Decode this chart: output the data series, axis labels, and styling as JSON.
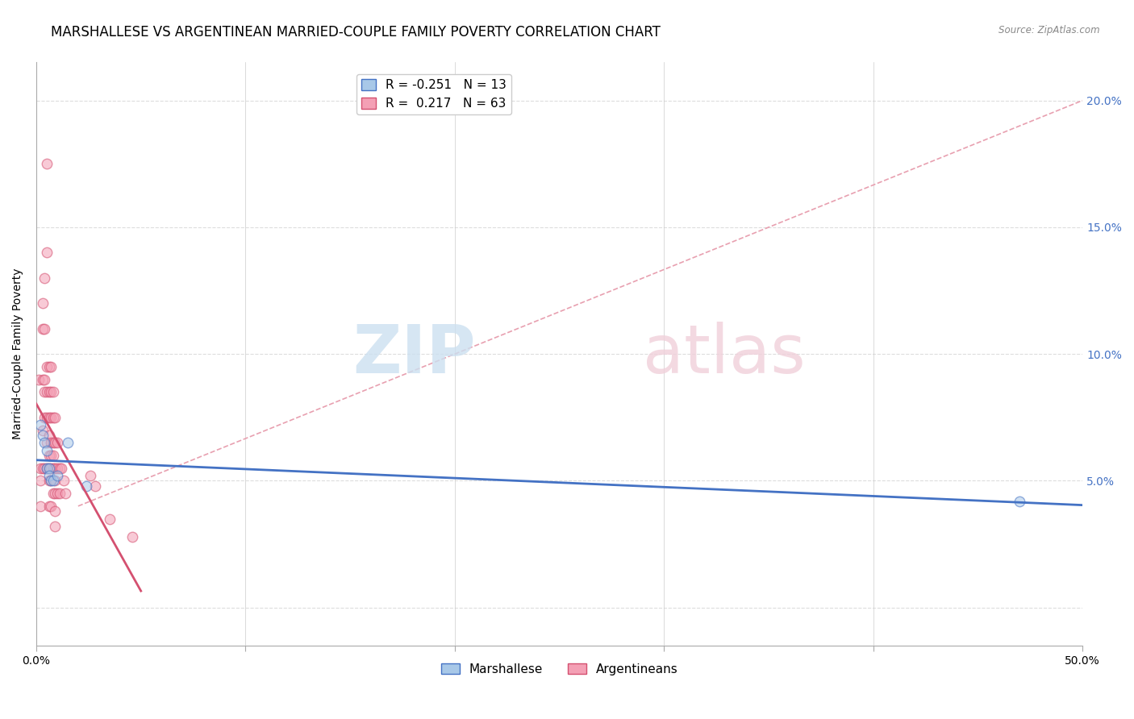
{
  "title": "MARSHALLESE VS ARGENTINEAN MARRIED-COUPLE FAMILY POVERTY CORRELATION CHART",
  "source": "Source: ZipAtlas.com",
  "xlabel": "",
  "ylabel": "Married-Couple Family Poverty",
  "xlim": [
    0,
    0.5
  ],
  "ylim": [
    -0.015,
    0.215
  ],
  "xtick_vals": [
    0.0,
    0.1,
    0.2,
    0.3,
    0.4,
    0.5
  ],
  "xtick_labels": [
    "0.0%",
    "",
    "",
    "",
    "",
    "50.0%"
  ],
  "ytick_vals": [
    0.0,
    0.05,
    0.1,
    0.15,
    0.2
  ],
  "right_ytick_labels": [
    "",
    "5.0%",
    "10.0%",
    "15.0%",
    "20.0%"
  ],
  "marshallese_color": "#a8c8e8",
  "argentinean_color": "#f4a0b5",
  "marshallese_line_color": "#4472c4",
  "argentinean_line_color": "#d45070",
  "dashed_line_color": "#e8a0b0",
  "marshallese_R": -0.251,
  "marshallese_N": 13,
  "argentinean_R": 0.217,
  "argentinean_N": 63,
  "marshallese_x": [
    0.002,
    0.003,
    0.004,
    0.005,
    0.005,
    0.006,
    0.006,
    0.007,
    0.008,
    0.01,
    0.015,
    0.024,
    0.47
  ],
  "marshallese_y": [
    0.072,
    0.068,
    0.065,
    0.062,
    0.055,
    0.055,
    0.052,
    0.05,
    0.05,
    0.052,
    0.065,
    0.048,
    0.042
  ],
  "argentinean_x": [
    0.001,
    0.002,
    0.002,
    0.002,
    0.003,
    0.003,
    0.003,
    0.003,
    0.003,
    0.004,
    0.004,
    0.004,
    0.004,
    0.004,
    0.004,
    0.005,
    0.005,
    0.005,
    0.005,
    0.005,
    0.005,
    0.005,
    0.006,
    0.006,
    0.006,
    0.006,
    0.006,
    0.006,
    0.006,
    0.006,
    0.007,
    0.007,
    0.007,
    0.007,
    0.007,
    0.007,
    0.007,
    0.007,
    0.008,
    0.008,
    0.008,
    0.008,
    0.008,
    0.008,
    0.009,
    0.009,
    0.009,
    0.009,
    0.009,
    0.009,
    0.009,
    0.01,
    0.01,
    0.01,
    0.011,
    0.011,
    0.012,
    0.013,
    0.014,
    0.026,
    0.028,
    0.035,
    0.046
  ],
  "argentinean_y": [
    0.09,
    0.055,
    0.05,
    0.04,
    0.12,
    0.11,
    0.09,
    0.07,
    0.055,
    0.13,
    0.11,
    0.09,
    0.085,
    0.075,
    0.055,
    0.175,
    0.14,
    0.095,
    0.085,
    0.075,
    0.065,
    0.055,
    0.095,
    0.085,
    0.075,
    0.068,
    0.06,
    0.055,
    0.05,
    0.04,
    0.095,
    0.085,
    0.075,
    0.065,
    0.06,
    0.055,
    0.05,
    0.04,
    0.085,
    0.075,
    0.065,
    0.06,
    0.055,
    0.045,
    0.075,
    0.065,
    0.055,
    0.05,
    0.045,
    0.038,
    0.032,
    0.065,
    0.055,
    0.045,
    0.055,
    0.045,
    0.055,
    0.05,
    0.045,
    0.052,
    0.048,
    0.035,
    0.028
  ],
  "background_color": "#ffffff",
  "grid_color": "#dddddd",
  "legend_fontsize": 11,
  "title_fontsize": 12,
  "axis_label_fontsize": 10,
  "tick_fontsize": 10,
  "marker_size": 9,
  "marker_alpha": 0.55,
  "right_ytick_color": "#4472c4",
  "watermark_zip_color": "#cce0f0",
  "watermark_atlas_color": "#f0d0da"
}
